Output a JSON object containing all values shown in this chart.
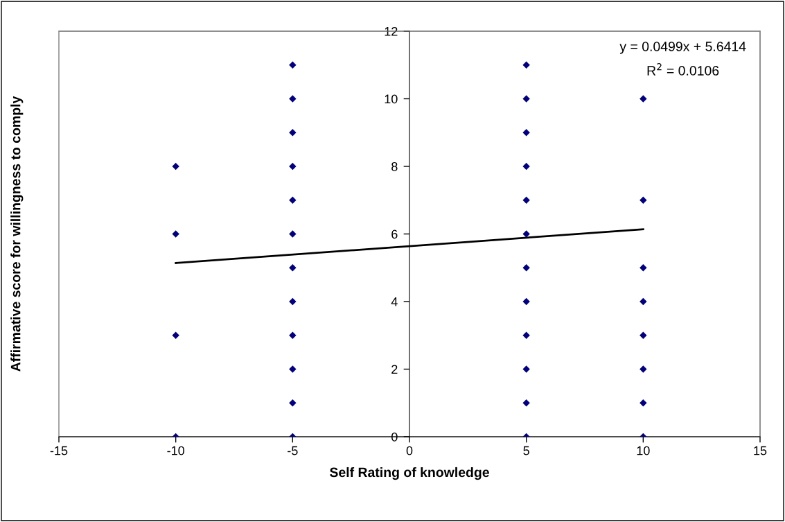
{
  "chart_data": {
    "type": "scatter",
    "xlabel": "Self Rating of knowledge",
    "ylabel": "Affirmative score for willingness to comply",
    "series": [
      {
        "color": "#000080",
        "marker": "diamond",
        "x": [
          -10,
          -10,
          -10,
          -10,
          -5,
          -5,
          -5,
          -5,
          -5,
          -5,
          -5,
          -5,
          -5,
          -5,
          -5,
          -5,
          5,
          5,
          5,
          5,
          5,
          5,
          5,
          5,
          5,
          5,
          5,
          5,
          10,
          10,
          10,
          10,
          10,
          10,
          10,
          10
        ],
        "values": [
          0,
          3,
          6,
          8,
          0,
          1,
          2,
          3,
          4,
          5,
          6,
          7,
          8,
          9,
          10,
          11,
          0,
          1,
          2,
          3,
          4,
          5,
          6,
          7,
          8,
          9,
          10,
          11,
          0,
          1,
          2,
          3,
          4,
          5,
          7,
          10
        ]
      },
      {
        "type": "line",
        "color": "#000000",
        "marker": "none",
        "x": [
          -10,
          10
        ],
        "values": [
          5.14,
          6.14
        ]
      }
    ],
    "xlim": [
      -15,
      15
    ],
    "xticks": [
      -15,
      -10,
      -5,
      0,
      5,
      10,
      15
    ],
    "ylim": [
      0,
      12
    ],
    "yticks": [
      0,
      2,
      4,
      6,
      8,
      10,
      12
    ],
    "grid": false,
    "legend": false,
    "annotations": [
      "y = 0.0499x + 5.6414",
      "R$^{2}$ = 0.0106"
    ]
  }
}
